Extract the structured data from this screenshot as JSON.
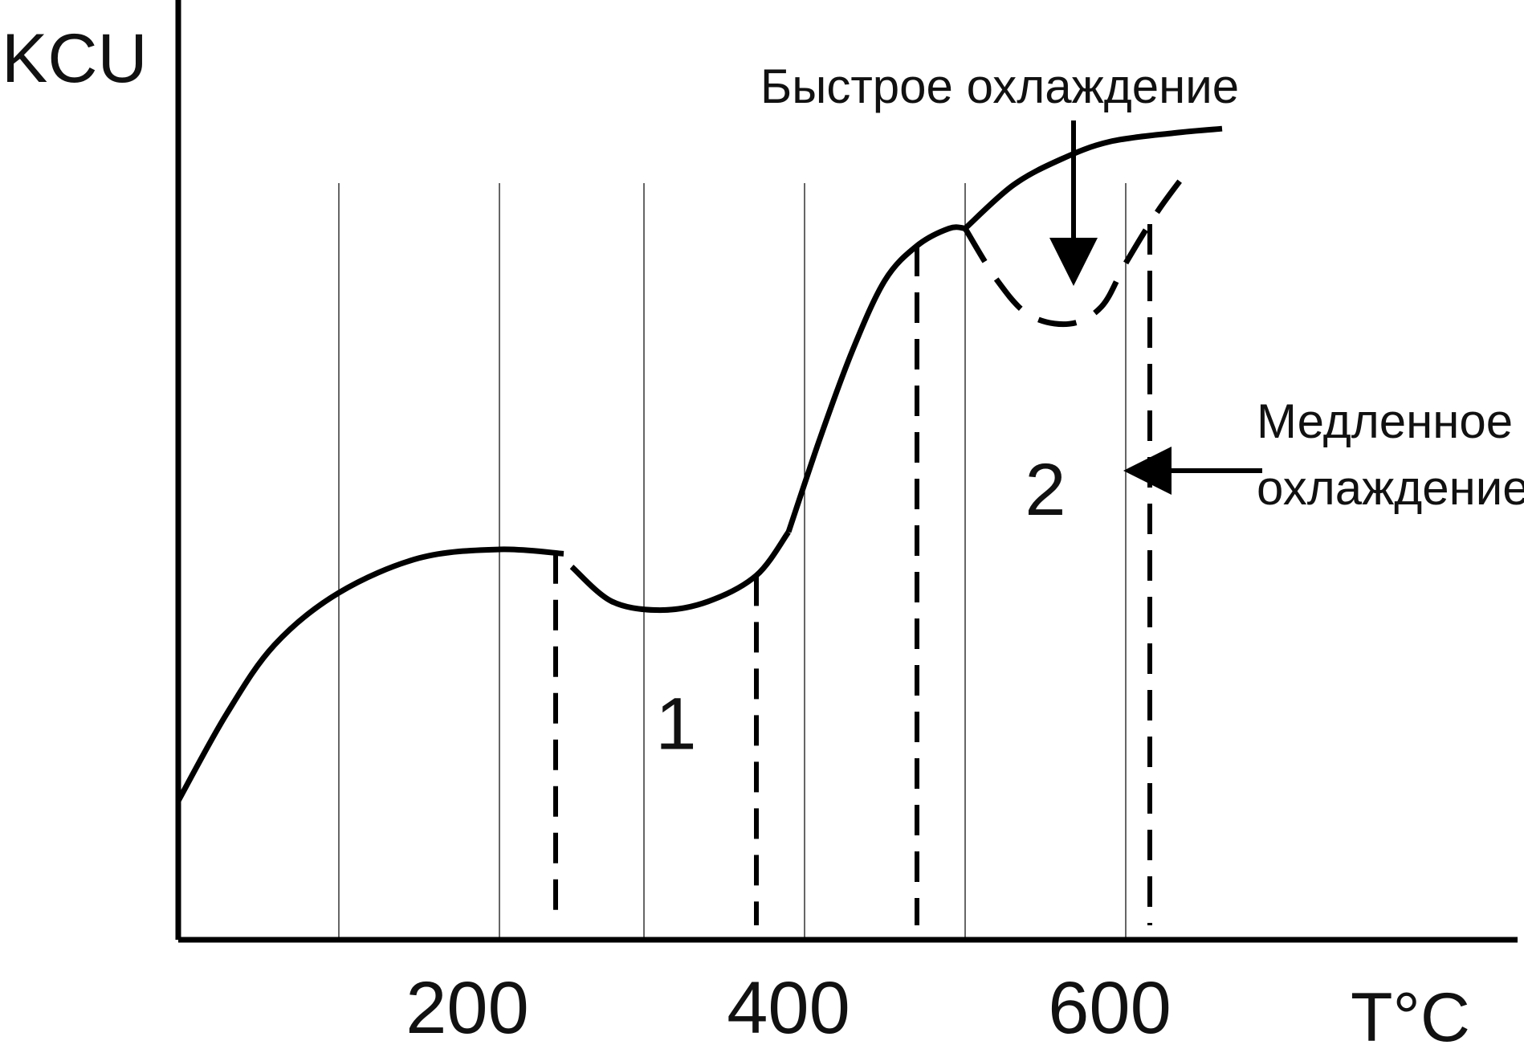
{
  "chart_data": {
    "type": "line",
    "title": "",
    "ylabel": "KCU",
    "xlabel": "T°C",
    "x_ticks": [
      200,
      400,
      600
    ],
    "xlim": [
      0,
      820
    ],
    "ylim": [
      0,
      1
    ],
    "grid": "vertical",
    "grid_x": [
      100,
      200,
      290,
      390,
      490,
      590
    ],
    "series": [
      {
        "name": "",
        "style": "solid",
        "x": [
          0,
          30,
          60,
          100,
          150,
          200,
          240
        ],
        "y": [
          0.16,
          0.26,
          0.34,
          0.4,
          0.44,
          0.45,
          0.445
        ]
      },
      {
        "name": "",
        "style": "solid",
        "x": [
          245,
          270,
          300,
          330,
          360,
          380
        ],
        "y": [
          0.43,
          0.39,
          0.38,
          0.39,
          0.42,
          0.47
        ]
      },
      {
        "name": "",
        "style": "solid",
        "x": [
          380,
          400,
          420,
          440,
          460,
          480,
          490
        ],
        "y": [
          0.47,
          0.58,
          0.68,
          0.76,
          0.8,
          0.82,
          0.82
        ]
      },
      {
        "name": "",
        "style": "solid",
        "x": [
          490,
          520,
          550,
          580,
          620,
          650
        ],
        "y": [
          0.82,
          0.87,
          0.9,
          0.92,
          0.93,
          0.935
        ]
      },
      {
        "name": "",
        "style": "dashed",
        "x": [
          490,
          510,
          530,
          555,
          575,
          590,
          610,
          630
        ],
        "y": [
          0.82,
          0.76,
          0.72,
          0.71,
          0.73,
          0.78,
          0.84,
          0.89
        ]
      }
    ],
    "region_bounds": [
      235,
      360,
      460,
      605
    ],
    "regions": [
      {
        "label": "1",
        "x": 310,
        "y": 0.22
      },
      {
        "label": "2",
        "x": 540,
        "y": 0.49
      }
    ],
    "annotations": [
      {
        "text": "Быстрое охлаждение"
      },
      {
        "text": "Медленное"
      },
      {
        "text": "охлаждение"
      }
    ]
  }
}
